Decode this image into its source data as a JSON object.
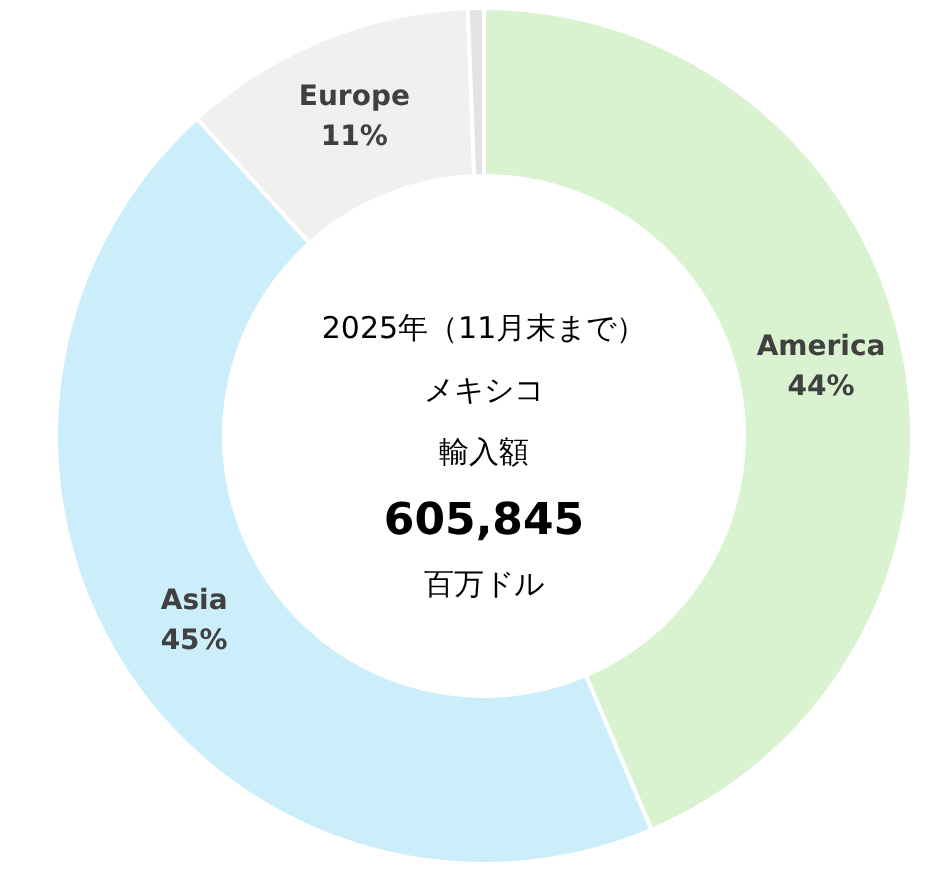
{
  "chart_data": {
    "type": "donut",
    "categories": [
      "America",
      "Asia",
      "Europe",
      null
    ],
    "values": [
      43.6,
      44.7,
      11.1,
      0.6
    ],
    "value_labels": [
      "44%",
      "45%",
      "11%",
      null
    ],
    "colors": [
      "#d9f2d0",
      "#cceefa",
      "#f0f0f0",
      "#e3e3e3"
    ],
    "annotations": [
      "2025年（11月末まで）",
      "メキシコ",
      "輸入額",
      "605,845",
      "百万ドル"
    ]
  }
}
